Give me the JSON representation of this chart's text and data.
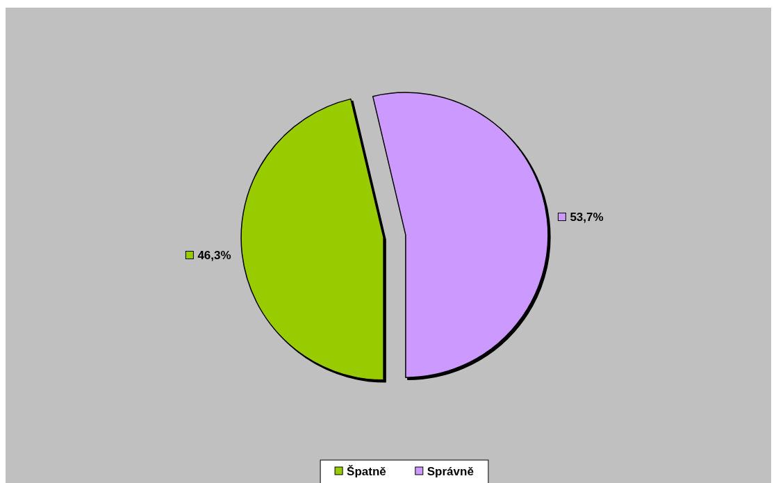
{
  "chart_data": {
    "type": "pie",
    "categories": [
      "Špatně",
      "Správně"
    ],
    "values": [
      46.3,
      53.7
    ],
    "colors": [
      "#99cc00",
      "#cc99ff"
    ],
    "value_labels": [
      "46,3%",
      "53,7%"
    ],
    "legend": "bottom"
  }
}
